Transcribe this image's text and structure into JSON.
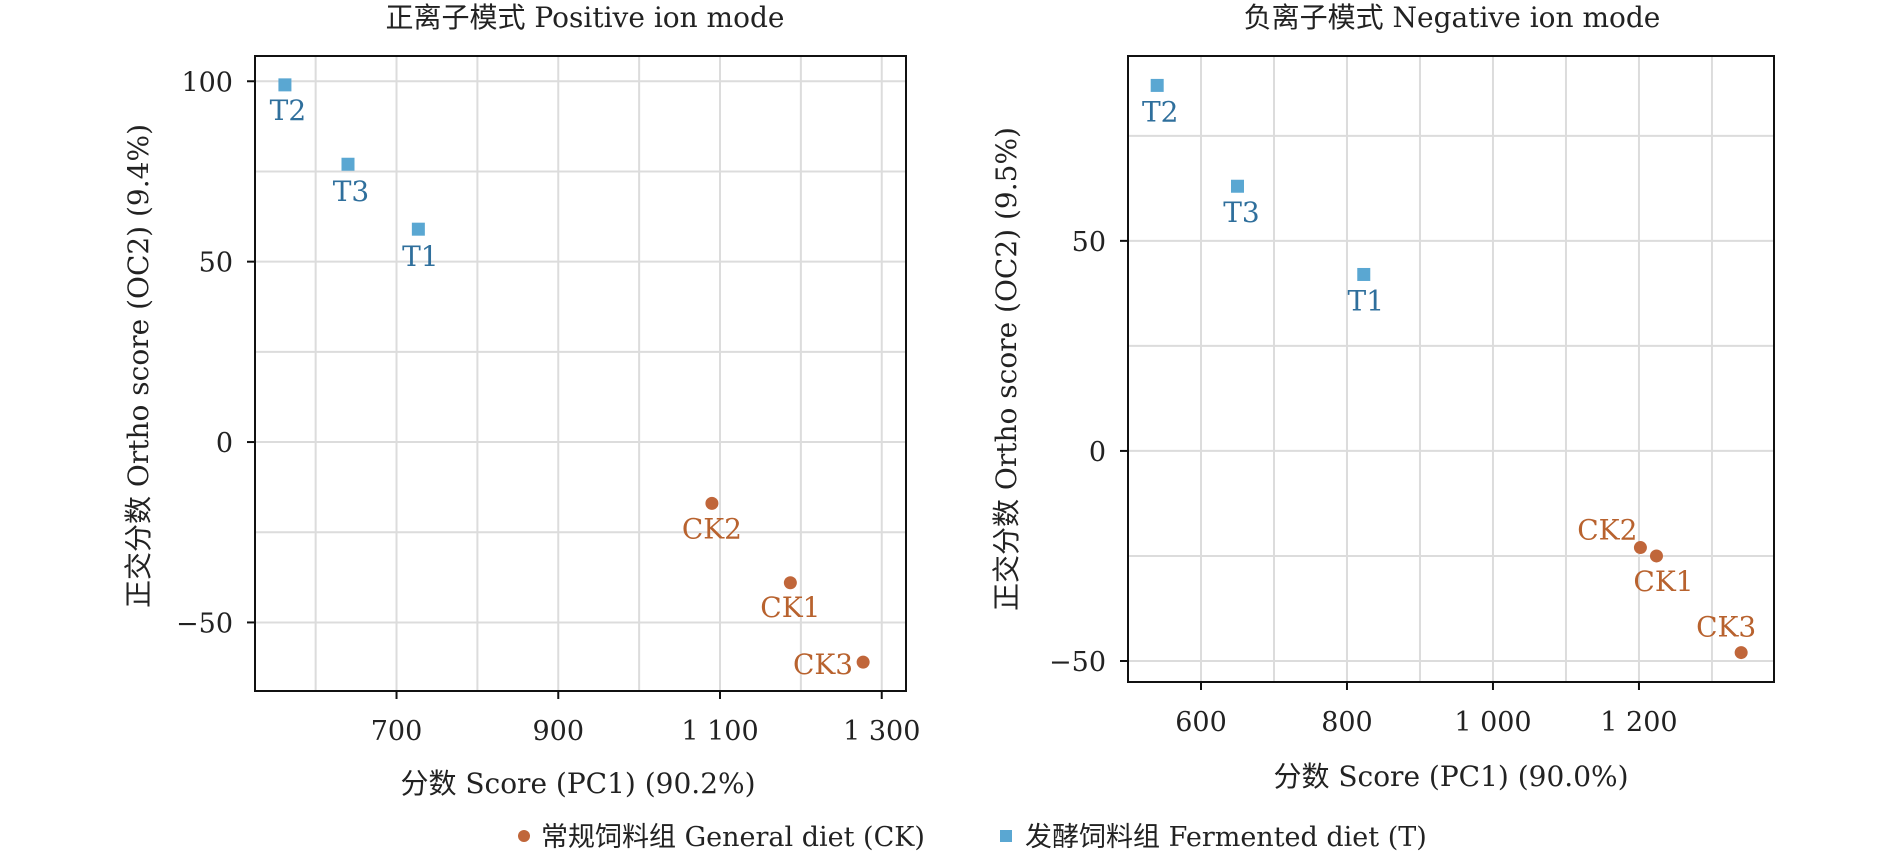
{
  "colors": {
    "ck": "#c0663a",
    "ck_label": "#b8622e",
    "t": "#5aa7d2",
    "t_label": "#2f6f9c",
    "grid": "#dcdcdc",
    "axis": "#111111",
    "text": "#222222"
  },
  "legend": [
    {
      "label": "常规饲料组 General diet (CK)",
      "marker": "circle",
      "color": "#c0663a"
    },
    {
      "label": "发酵饲料组 Fermented diet (T)",
      "marker": "square",
      "color": "#5aa7d2"
    }
  ],
  "chart_data": [
    {
      "type": "scatter",
      "title": "正离子模式  Positive ion mode",
      "xlabel": "分数 Score (PC1) (90.2%)",
      "ylabel": "正交分数 Ortho score (OC2) (9.4%)",
      "xlim": [
        525,
        1330
      ],
      "ylim": [
        -69,
        107
      ],
      "xticks": [
        700,
        900,
        1100,
        1300
      ],
      "xtick_labels": [
        "700",
        "900",
        "1 100",
        "1 300"
      ],
      "xgrid": [
        600,
        700,
        800,
        900,
        1000,
        1100,
        1200,
        1300
      ],
      "yticks": [
        100,
        50,
        0,
        -50
      ],
      "ytick_labels": [
        "100",
        "50",
        "0",
        "−50"
      ],
      "ygrid": [
        100,
        75,
        50,
        25,
        0,
        -25,
        -50
      ],
      "grid": true,
      "series": [
        {
          "name": "常规饲料组 General diet (CK)",
          "marker": "circle",
          "points": [
            {
              "label": "CK1",
              "x": 1187,
              "y": -39
            },
            {
              "label": "CK2",
              "x": 1090,
              "y": -17
            },
            {
              "label": "CK3",
              "x": 1277,
              "y": -61
            }
          ]
        },
        {
          "name": "发酵饲料组 Fermented diet (T)",
          "marker": "square",
          "points": [
            {
              "label": "T1",
              "x": 727,
              "y": 59
            },
            {
              "label": "T2",
              "x": 562,
              "y": 99
            },
            {
              "label": "T3",
              "x": 640,
              "y": 77
            }
          ]
        }
      ]
    },
    {
      "type": "scatter",
      "title": "负离子模式 Negative ion mode",
      "xlabel": "分数 Score (PC1) (90.0%)",
      "ylabel": "正交分数 Ortho score (OC2) (9.5%)",
      "xlim": [
        500,
        1385
      ],
      "ylim": [
        -55,
        94
      ],
      "xticks": [
        600,
        800,
        1000,
        1200
      ],
      "xtick_labels": [
        "600",
        "800",
        "1 000",
        "1 200"
      ],
      "xgrid": [
        600,
        700,
        800,
        900,
        1000,
        1100,
        1200,
        1300
      ],
      "yticks": [
        50,
        0,
        -50
      ],
      "ytick_labels": [
        "50",
        "0",
        "−50"
      ],
      "ygrid": [
        75,
        50,
        25,
        0,
        -25,
        -50
      ],
      "grid": true,
      "series": [
        {
          "name": "常规饲料组 General diet (CK)",
          "marker": "circle",
          "points": [
            {
              "label": "CK1",
              "x": 1224,
              "y": -25
            },
            {
              "label": "CK2",
              "x": 1202,
              "y": -23
            },
            {
              "label": "CK3",
              "x": 1340,
              "y": -48
            }
          ]
        },
        {
          "name": "发酵饲料组 Fermented diet (T)",
          "marker": "square",
          "points": [
            {
              "label": "T1",
              "x": 823,
              "y": 42
            },
            {
              "label": "T2",
              "x": 540,
              "y": 87
            },
            {
              "label": "T3",
              "x": 650,
              "y": 63
            }
          ]
        }
      ]
    }
  ]
}
